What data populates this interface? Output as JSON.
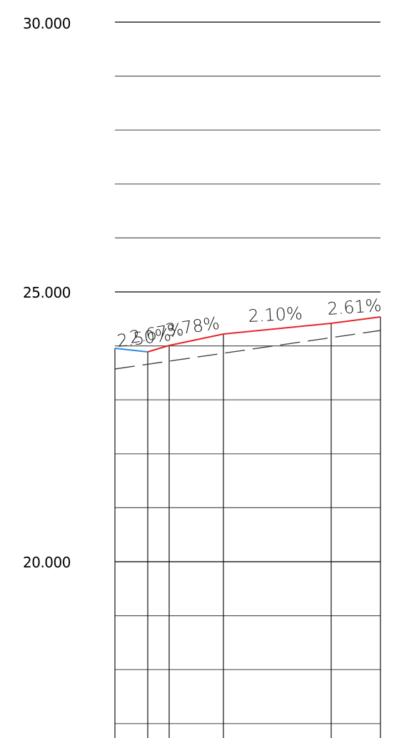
{
  "elevation_axis": {
    "labels": [
      {
        "value": 30,
        "text": "30.000"
      },
      {
        "value": 25,
        "text": "25.000"
      },
      {
        "value": 20,
        "text": "20.000"
      }
    ],
    "visible_range": [
      16.4,
      30.4
    ],
    "major_step": 5,
    "minor_step": 1
  },
  "grade_segments": [
    {
      "label": "2.50%",
      "color": "#2b8ce6"
    },
    {
      "label": "2.67%",
      "color": "#e8242a"
    },
    {
      "label": "3.78%",
      "color": "#e8242a"
    },
    {
      "label": "2.10%",
      "color": "#e8242a"
    },
    {
      "label": "2.61%",
      "color": "#e8242a"
    }
  ],
  "colors": {
    "existing_profile": "#2b8ce6",
    "design_profile": "#e8242a",
    "reference_line": "#444444",
    "grid": "#555555",
    "station_lines": "#111111"
  },
  "line_styles": {
    "reference_line": "dashed"
  }
}
